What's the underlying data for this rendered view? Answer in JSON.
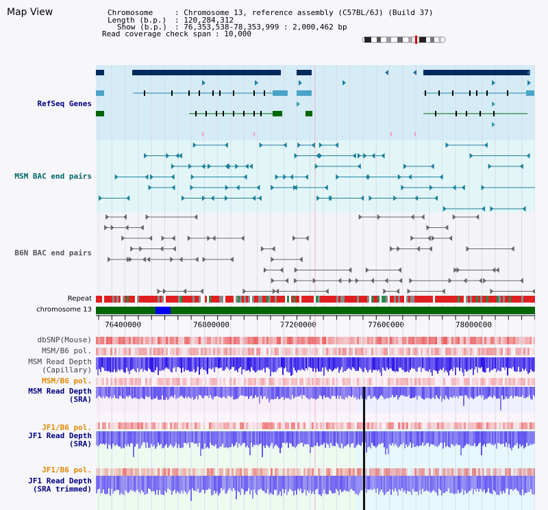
{
  "title": "Map View",
  "info": {
    "chromosome_label": "Chromosome",
    "chromosome_value": ": Chromosome 13, reference assembly (C57BL/6J) (Build 37)",
    "length_label": "Length (b.p.)",
    "length_value": ": 120,284,312",
    "show_label": "Show (b.p.)",
    "show_value": ": 76,353,538-78,353,999 : 2,000,462 bp",
    "coverage_label": "Read coverage check span",
    "coverage_value": ": 10,000"
  },
  "tracks": {
    "refseq": "RefSeq Genes",
    "msm_bac": "MSM BAC end pairs",
    "b6n_bac": "B6N BAC end pairs",
    "repeat": "Repeat",
    "chromosome": "chromosome 13",
    "dbsnp": "dbSNP(Mouse)",
    "msm_b6_pol": "MSM/B6 pol.",
    "msm_depth_cap_1": "MSM Read Depth",
    "msm_depth_cap_2": "(Capillary)",
    "msm_b6_pol_2": "MSM/B6 pol.",
    "msm_depth_sra_1": "MSM Read Depth",
    "msm_depth_sra_2": "(SRA)",
    "jf1_b6_pol": "JF1/B6 pol.",
    "jf1_depth_sra_1": "JF1 Read Depth",
    "jf1_depth_sra_2": "(SRA)",
    "jf1_b6_pol_2": "JF1/B6 pol.",
    "jf1_depth_trim_1": "JF1 Read Depth",
    "jf1_depth_trim_2": "(SRA trimmed)"
  },
  "axis_ticks": [
    "76400000",
    "76800000",
    "77200000",
    "77600000",
    "78000000"
  ],
  "colors": {
    "gene_dark": "#002a5c",
    "gene_light": "#4aa3c8",
    "gene_green": "#006600",
    "refseq_bg": "#d5ecf7",
    "msm_bg": "#e2f6f8",
    "chromosome_bar": "#006400",
    "depth_blue": "#3a2aef",
    "pol_red": "#e83030"
  }
}
